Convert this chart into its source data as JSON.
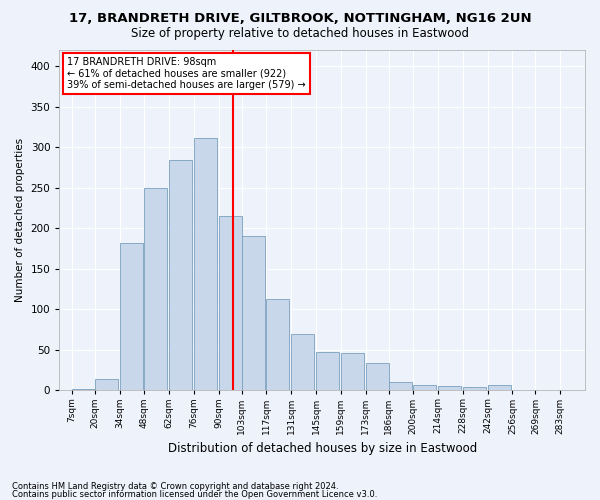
{
  "title1": "17, BRANDRETH DRIVE, GILTBROOK, NOTTINGHAM, NG16 2UN",
  "title2": "Size of property relative to detached houses in Eastwood",
  "xlabel": "Distribution of detached houses by size in Eastwood",
  "ylabel": "Number of detached properties",
  "footnote1": "Contains HM Land Registry data © Crown copyright and database right 2024.",
  "footnote2": "Contains public sector information licensed under the Open Government Licence v3.0.",
  "annotation_line1": "17 BRANDRETH DRIVE: 98sqm",
  "annotation_line2": "← 61% of detached houses are smaller (922)",
  "annotation_line3": "39% of semi-detached houses are larger (579) →",
  "property_size": 98,
  "bar_color": "#c8d8ea",
  "bar_edgecolor": "#7aa0be",
  "vline_color": "red",
  "background_color": "#eef2fb",
  "grid_color": "#ffffff",
  "categories": [
    "7sqm",
    "20sqm",
    "34sqm",
    "48sqm",
    "62sqm",
    "76sqm",
    "90sqm",
    "103sqm",
    "117sqm",
    "131sqm",
    "145sqm",
    "159sqm",
    "173sqm",
    "186sqm",
    "200sqm",
    "214sqm",
    "228sqm",
    "242sqm",
    "256sqm",
    "269sqm",
    "283sqm"
  ],
  "bin_lefts": [
    7,
    20,
    34,
    48,
    62,
    76,
    90,
    103,
    117,
    131,
    145,
    159,
    173,
    186,
    200,
    214,
    228,
    242,
    256,
    269,
    283
  ],
  "bin_width": 13,
  "values": [
    2,
    14,
    182,
    250,
    284,
    312,
    215,
    190,
    113,
    70,
    47,
    46,
    34,
    10,
    7,
    5,
    4,
    7,
    1,
    1,
    1
  ],
  "ylim": [
    0,
    420
  ],
  "yticks": [
    0,
    50,
    100,
    150,
    200,
    250,
    300,
    350,
    400
  ],
  "xlim_min": 0,
  "xlim_max": 297,
  "annotation_box_color": "white",
  "annotation_box_edgecolor": "red",
  "title1_fontsize": 9.5,
  "title2_fontsize": 8.5,
  "xlabel_fontsize": 8.5,
  "ylabel_fontsize": 7.5,
  "xtick_fontsize": 6.5,
  "ytick_fontsize": 7.5,
  "annotation_fontsize": 7,
  "footnote_fontsize": 6
}
